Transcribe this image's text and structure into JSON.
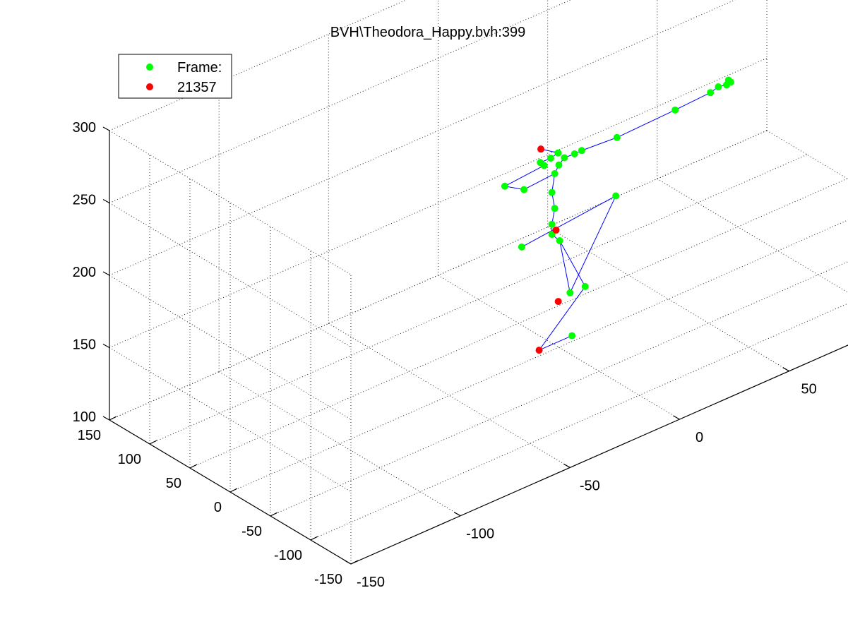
{
  "chart_data": {
    "type": "scatter",
    "title": "BVH\\Theodora_Happy.bvh:399",
    "xlabel": "",
    "ylabel": "",
    "zlabel": "",
    "grid": true,
    "axes": {
      "x": {
        "range": [
          -150,
          150
        ],
        "ticks": [
          "-150",
          "-100",
          "-50",
          "0",
          "50",
          "100",
          "150"
        ]
      },
      "y": {
        "range": [
          -150,
          150
        ],
        "ticks": [
          "-150",
          "-100",
          "-50",
          "0",
          "50",
          "100",
          "150"
        ]
      },
      "z": {
        "range": [
          100,
          300
        ],
        "ticks": [
          "100",
          "150",
          "200",
          "250",
          "300"
        ]
      }
    },
    "legend": {
      "placement": "top-left",
      "entries": [
        {
          "label": "Frame:",
          "color": "#00ff00"
        },
        {
          "label": "21357",
          "color": "#ff0000"
        }
      ]
    },
    "colors": {
      "joint": "#00ff00",
      "end_site": "#ff0000",
      "bone": "#0000ff",
      "grid": "#262626"
    },
    "series": [
      {
        "marker": "joint",
        "color": "#00ff00",
        "points": [
          {
            "x": 6,
            "y": 0,
            "z": 104
          },
          {
            "x": 12,
            "y": 0,
            "z": 134
          },
          {
            "x": 4,
            "y": -3,
            "z": 136
          },
          {
            "x": 0,
            "y": -1,
            "z": 174
          },
          {
            "x": -14,
            "y": 8,
            "z": 176
          },
          {
            "x": 37,
            "y": 30,
            "z": 170
          },
          {
            "x": -5,
            "y": -5,
            "z": 183
          },
          {
            "x": -5,
            "y": -5,
            "z": 190
          },
          {
            "x": -3,
            "y": -3,
            "z": 199
          },
          {
            "x": -5,
            "y": -5,
            "z": 212
          },
          {
            "x": -3,
            "y": -3,
            "z": 223
          },
          {
            "x": 0,
            "y": 0,
            "z": 226
          },
          {
            "x": 4,
            "y": 4,
            "z": 227
          },
          {
            "x": 9,
            "y": 5,
            "z": 226
          },
          {
            "x": 13,
            "y": 7,
            "z": 225
          },
          {
            "x": 28,
            "y": 4,
            "z": 225
          },
          {
            "x": 56,
            "y": 8,
            "z": 224
          },
          {
            "x": 71,
            "y": 5,
            "z": 227
          },
          {
            "x": 75,
            "y": 6,
            "z": 228
          },
          {
            "x": 78,
            "y": 4,
            "z": 228
          },
          {
            "x": 80,
            "y": 7,
            "z": 229
          },
          {
            "x": 81,
            "y": 7,
            "z": 227
          },
          {
            "x": -13,
            "y": 8,
            "z": 215
          },
          {
            "x": -21,
            "y": 10,
            "z": 222
          },
          {
            "x": -6,
            "y": 2,
            "z": 229
          },
          {
            "x": -7,
            "y": 4,
            "z": 231
          },
          {
            "x": -3,
            "y": 2,
            "z": 232
          },
          {
            "x": 0,
            "y": 1,
            "z": 234
          }
        ]
      },
      {
        "marker": "end_site",
        "color": "#ff0000",
        "points": [
          {
            "x": -9,
            "y": 0,
            "z": 104
          },
          {
            "x": -1,
            "y": -2,
            "z": 133
          },
          {
            "x": -2,
            "y": -2,
            "z": 183
          },
          {
            "x": -6,
            "y": 6,
            "z": 239
          }
        ]
      }
    ],
    "bones": [
      [
        0,
        0,
        1,
        0
      ],
      [
        1,
        0,
        0,
        1
      ],
      [
        0,
        1,
        0,
        3
      ],
      [
        0,
        3,
        0,
        2
      ],
      [
        0,
        2,
        0,
        5
      ],
      [
        0,
        5,
        0,
        4
      ],
      [
        0,
        3,
        0,
        6
      ],
      [
        0,
        6,
        0,
        7
      ],
      [
        0,
        7,
        0,
        8
      ],
      [
        0,
        8,
        0,
        9
      ],
      [
        0,
        9,
        0,
        10
      ],
      [
        0,
        10,
        0,
        11
      ],
      [
        0,
        11,
        0,
        12
      ],
      [
        0,
        12,
        0,
        13
      ],
      [
        0,
        13,
        0,
        14
      ],
      [
        0,
        14,
        0,
        15
      ],
      [
        0,
        15,
        0,
        16
      ],
      [
        0,
        16,
        0,
        17
      ],
      [
        0,
        17,
        0,
        18
      ],
      [
        0,
        18,
        0,
        19
      ],
      [
        0,
        19,
        0,
        20
      ],
      [
        0,
        20,
        0,
        21
      ],
      [
        0,
        10,
        0,
        22
      ],
      [
        0,
        22,
        0,
        23
      ],
      [
        0,
        23,
        0,
        24
      ],
      [
        0,
        24,
        0,
        25
      ],
      [
        0,
        25,
        0,
        26
      ],
      [
        0,
        26,
        0,
        27
      ],
      [
        0,
        27,
        1,
        3
      ]
    ]
  }
}
